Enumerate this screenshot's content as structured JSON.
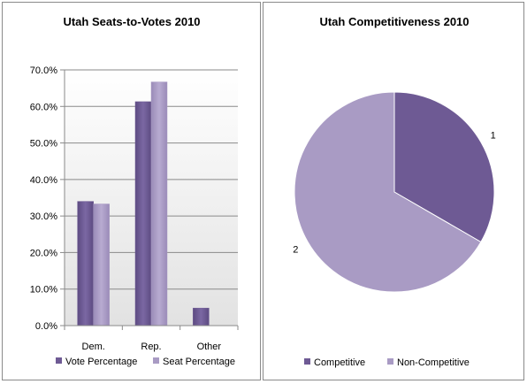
{
  "chart_data": [
    {
      "type": "bar",
      "title": "Utah Seats-to-Votes 2010",
      "categories": [
        "Dem.",
        "Rep.",
        "Other"
      ],
      "series": [
        {
          "name": "Vote Percentage",
          "values": [
            34.0,
            61.3,
            4.8
          ],
          "color": "#6E5A94"
        },
        {
          "name": "Seat Percentage",
          "values": [
            33.3,
            66.7,
            null
          ],
          "color": "#A99BC4"
        }
      ],
      "ylim": [
        0,
        70
      ],
      "yticks": [
        "0.0%",
        "10.0%",
        "20.0%",
        "30.0%",
        "40.0%",
        "50.0%",
        "60.0%",
        "70.0%"
      ],
      "grid": true,
      "legend": "bottom",
      "xlabel": "",
      "ylabel": ""
    },
    {
      "type": "pie",
      "title": "Utah Competitiveness 2010",
      "slices": [
        {
          "name": "Competitive",
          "value": 1,
          "label": "1",
          "color": "#6E5A94"
        },
        {
          "name": "Non-Competitive",
          "value": 2,
          "label": "2",
          "color": "#A99BC4"
        }
      ],
      "legend": "bottom"
    }
  ]
}
